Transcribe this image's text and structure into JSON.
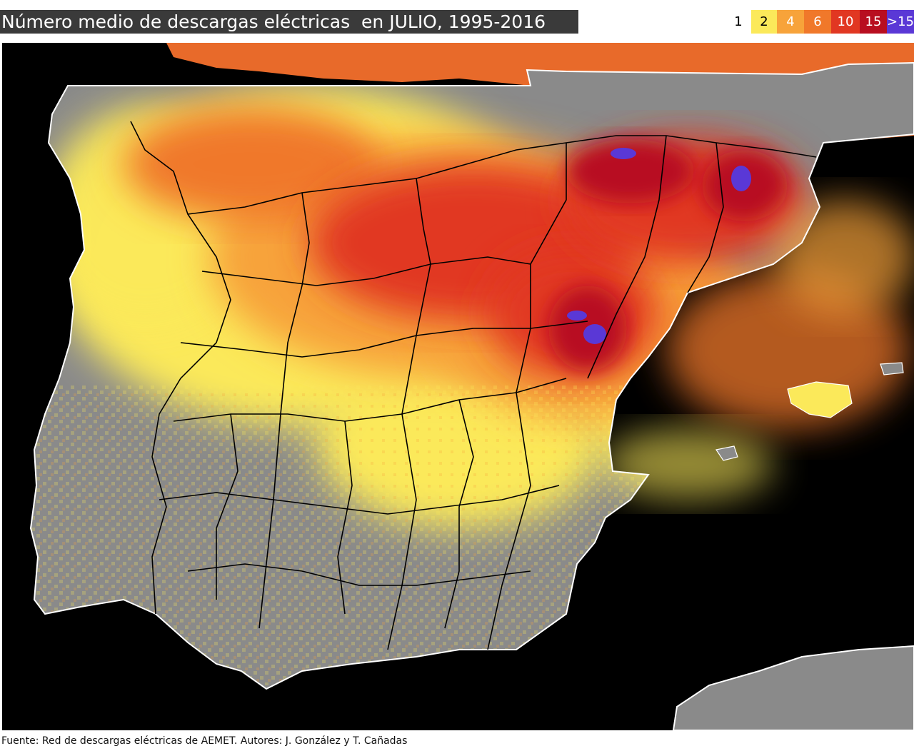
{
  "title": "Número medio de descargas eléctricas  en JULIO, 1995-2016",
  "legend": [
    {
      "label": "1",
      "color": "#ffffff",
      "text_color": "#000000"
    },
    {
      "label": "2",
      "color": "#fbe95a",
      "text_color": "#000000"
    },
    {
      "label": "4",
      "color": "#f7a33a",
      "text_color": "#ffffff"
    },
    {
      "label": "6",
      "color": "#f0782a",
      "text_color": "#ffffff"
    },
    {
      "label": "10",
      "color": "#e13722",
      "text_color": "#ffffff"
    },
    {
      "label": "15",
      "color": "#b80e20",
      "text_color": "#ffffff"
    },
    {
      "label": ">15",
      "color": "#5a38d6",
      "text_color": "#ffffff"
    }
  ],
  "map": {
    "land_color": "#8a8a8a",
    "sea_color": "#000000",
    "coast_color": "#ffffff",
    "border_color": "#000000"
  },
  "footer": "Fuente: Red de descargas eléctricas de AEMET. Autores: J. González y T. Cañadas"
}
